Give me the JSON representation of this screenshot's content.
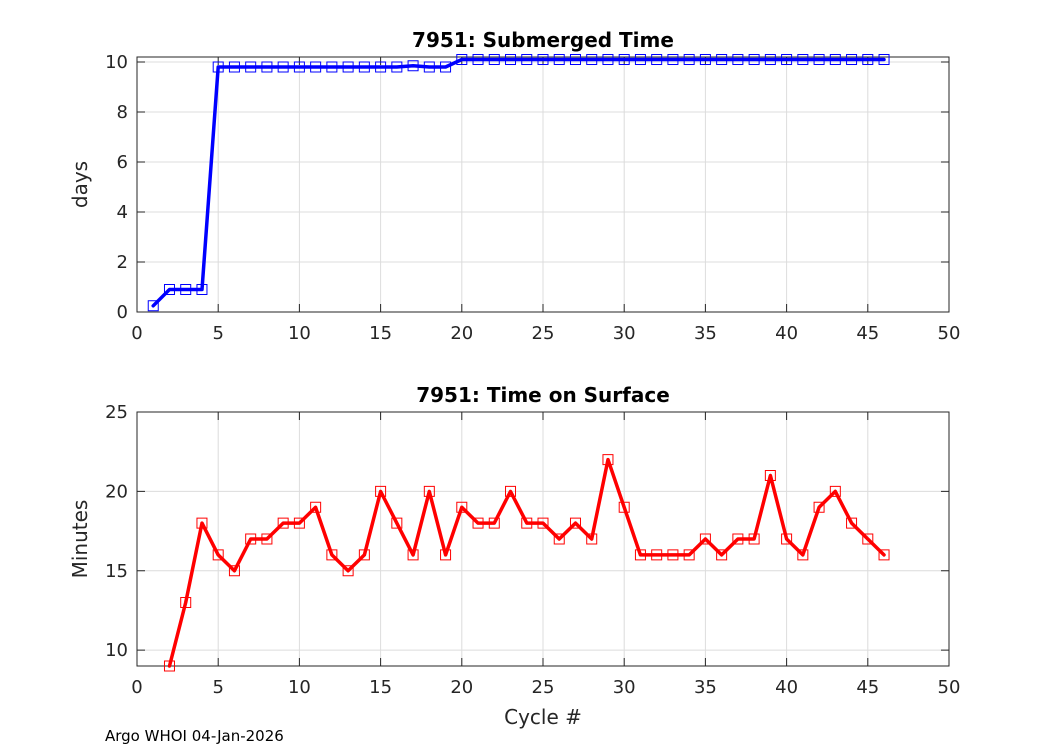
{
  "chart_data": [
    {
      "type": "line",
      "title": "7951: Submerged Time",
      "xlabel": "",
      "ylabel": "days",
      "xlim": [
        0,
        50
      ],
      "ylim": [
        0,
        10.2
      ],
      "xticks": [
        0,
        5,
        10,
        15,
        20,
        25,
        30,
        35,
        40,
        45,
        50
      ],
      "yticks": [
        0,
        2,
        4,
        6,
        8,
        10
      ],
      "grid": true,
      "color": "#0000ff",
      "marker": "square",
      "x": [
        1,
        2,
        3,
        4,
        5,
        6,
        7,
        8,
        9,
        10,
        11,
        12,
        13,
        14,
        15,
        16,
        17,
        18,
        19,
        20,
        21,
        22,
        23,
        24,
        25,
        26,
        27,
        28,
        29,
        30,
        31,
        32,
        33,
        34,
        35,
        36,
        37,
        38,
        39,
        40,
        41,
        42,
        43,
        44,
        45,
        46
      ],
      "y": [
        0.25,
        0.9,
        0.9,
        0.9,
        9.8,
        9.8,
        9.8,
        9.8,
        9.8,
        9.8,
        9.8,
        9.8,
        9.8,
        9.8,
        9.8,
        9.8,
        9.85,
        9.8,
        9.8,
        10.1,
        10.1,
        10.1,
        10.1,
        10.1,
        10.1,
        10.1,
        10.1,
        10.1,
        10.1,
        10.1,
        10.1,
        10.1,
        10.1,
        10.1,
        10.1,
        10.1,
        10.1,
        10.1,
        10.1,
        10.1,
        10.1,
        10.1,
        10.1,
        10.1,
        10.1,
        10.1
      ]
    },
    {
      "type": "line",
      "title": "7951: Time on Surface",
      "xlabel": "Cycle #",
      "ylabel": "Minutes",
      "xlim": [
        0,
        50
      ],
      "ylim": [
        9,
        25
      ],
      "xticks": [
        0,
        5,
        10,
        15,
        20,
        25,
        30,
        35,
        40,
        45,
        50
      ],
      "yticks": [
        10,
        15,
        20,
        25
      ],
      "grid": true,
      "color": "#ff0000",
      "marker": "square",
      "x": [
        2,
        3,
        4,
        5,
        6,
        7,
        8,
        9,
        10,
        11,
        12,
        13,
        14,
        15,
        16,
        17,
        18,
        19,
        20,
        21,
        22,
        23,
        24,
        25,
        26,
        27,
        28,
        29,
        30,
        31,
        32,
        33,
        34,
        35,
        36,
        37,
        38,
        39,
        40,
        41,
        42,
        43,
        44,
        45,
        46
      ],
      "y": [
        9,
        13,
        18,
        16,
        15,
        17,
        17,
        18,
        18,
        19,
        16,
        15,
        16,
        20,
        18,
        16,
        20,
        16,
        19,
        18,
        18,
        20,
        18,
        18,
        17,
        18,
        17,
        22,
        19,
        16,
        16,
        16,
        16,
        17,
        16,
        17,
        17,
        21,
        17,
        16,
        19,
        20,
        18,
        17,
        16
      ]
    }
  ],
  "footer": "Argo WHOI 04-Jan-2026"
}
